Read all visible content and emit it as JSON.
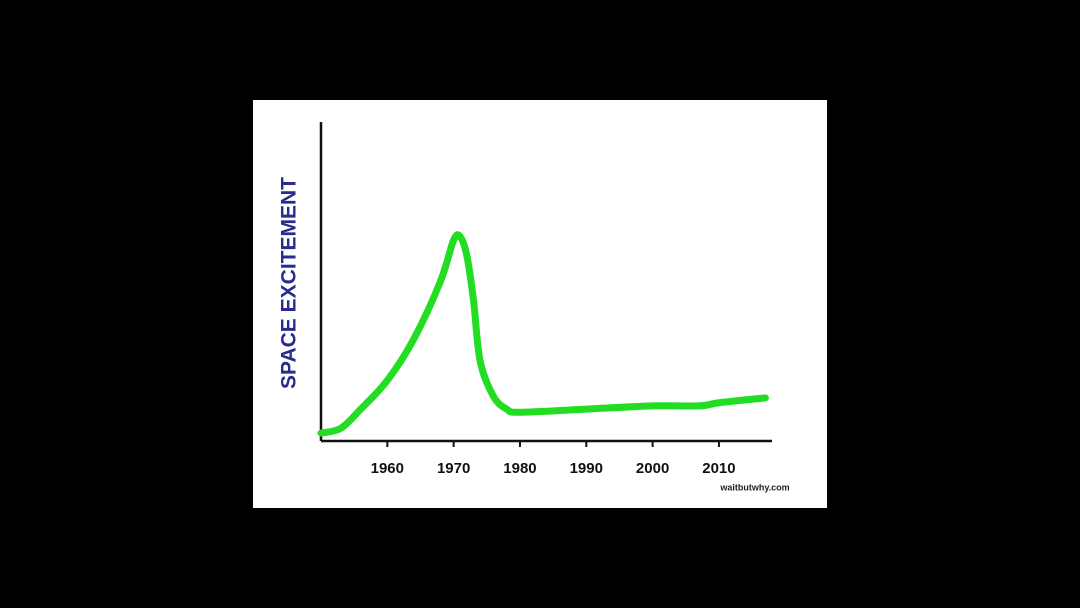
{
  "chart_data": {
    "type": "line",
    "ylabel": "SPACE EXCITEMENT",
    "credit": "waitbutwhy.com",
    "x": [
      1950,
      1953,
      1956,
      1960,
      1964,
      1968,
      1970,
      1971,
      1972,
      1973,
      1974,
      1976,
      1978,
      1980,
      1990,
      2000,
      2007,
      2010,
      2017
    ],
    "series": [
      {
        "color": "#22dd22",
        "values": [
          2.5,
          4,
          10,
          19,
          32,
          50,
          63,
          64,
          58,
          44,
          25,
          14,
          10,
          9,
          10,
          11,
          11,
          12,
          13.5
        ]
      }
    ],
    "xlim": [
      1950,
      2018
    ],
    "xticks": [
      1960,
      1970,
      1980,
      1990,
      2000,
      2010
    ],
    "ylim": [
      0,
      100
    ]
  }
}
